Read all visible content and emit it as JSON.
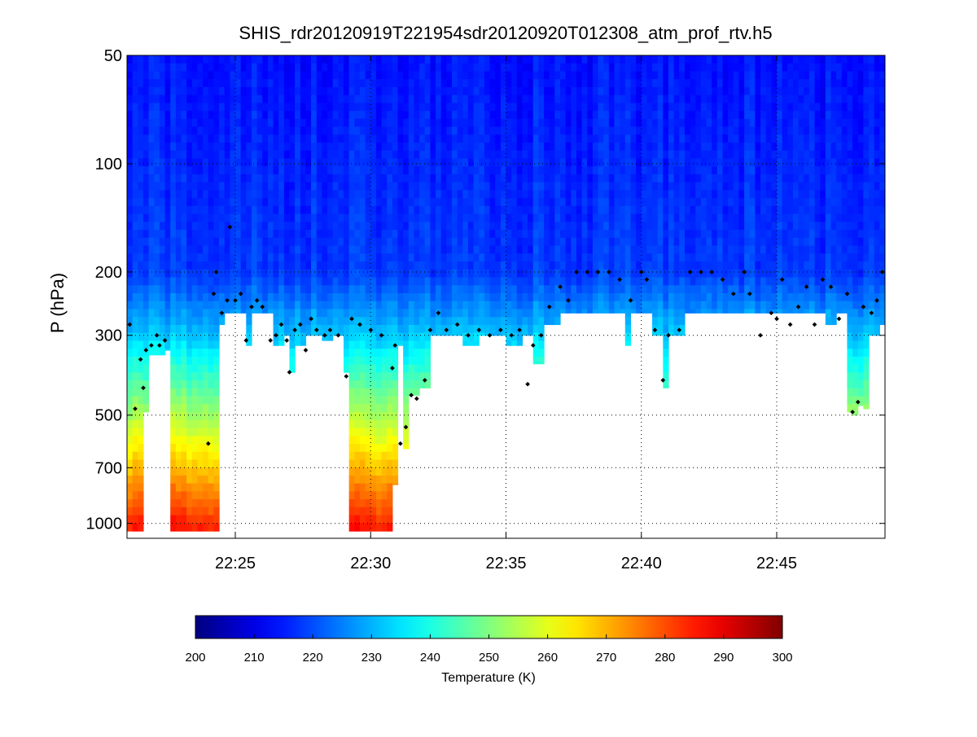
{
  "chart_data": {
    "type": "heatmap",
    "title": "SHIS_rdr20120919T221954sdr20120920T012308_atm_prof_rtv.h5",
    "xlabel": "",
    "ylabel": "P (hPa)",
    "x_range_minutes": [
      21.0,
      49.0
    ],
    "x_ticks": [
      {
        "value": 25,
        "label": "22:25"
      },
      {
        "value": 30,
        "label": "22:30"
      },
      {
        "value": 35,
        "label": "22:35"
      },
      {
        "value": 40,
        "label": "22:40"
      },
      {
        "value": 45,
        "label": "22:45"
      }
    ],
    "y_scale": "log",
    "y_range": [
      50,
      1100
    ],
    "y_ticks": [
      {
        "value": 50,
        "label": "50"
      },
      {
        "value": 100,
        "label": "100"
      },
      {
        "value": 200,
        "label": "200"
      },
      {
        "value": 300,
        "label": "300"
      },
      {
        "value": 500,
        "label": "500"
      },
      {
        "value": 700,
        "label": "700"
      },
      {
        "value": 1000,
        "label": "1000"
      }
    ],
    "grid": "dotted",
    "colormap": "jet",
    "colorbar": {
      "label": "Temperature (K)",
      "range": [
        200,
        300
      ],
      "ticks": [
        200,
        210,
        220,
        230,
        240,
        250,
        260,
        270,
        280,
        290,
        300
      ],
      "placement": "bottom"
    },
    "profile_bottom": [
      [
        21.0,
        1050
      ],
      [
        21.6,
        490
      ],
      [
        21.8,
        340
      ],
      [
        22.4,
        330
      ],
      [
        22.6,
        1050
      ],
      [
        24.2,
        1050
      ],
      [
        24.4,
        280
      ],
      [
        24.6,
        260
      ],
      [
        25.0,
        260
      ],
      [
        25.4,
        320
      ],
      [
        25.6,
        260
      ],
      [
        26.2,
        260
      ],
      [
        26.4,
        320
      ],
      [
        26.8,
        300
      ],
      [
        27.0,
        380
      ],
      [
        27.3,
        320
      ],
      [
        27.6,
        300
      ],
      [
        28.2,
        310
      ],
      [
        28.6,
        300
      ],
      [
        29.0,
        380
      ],
      [
        29.2,
        1050
      ],
      [
        30.6,
        1050
      ],
      [
        30.8,
        780
      ],
      [
        31.0,
        320
      ],
      [
        31.2,
        620
      ],
      [
        31.4,
        440
      ],
      [
        31.8,
        420
      ],
      [
        32.2,
        300
      ],
      [
        33.4,
        320
      ],
      [
        34.0,
        300
      ],
      [
        35.0,
        320
      ],
      [
        35.6,
        300
      ],
      [
        36.0,
        360
      ],
      [
        36.4,
        280
      ],
      [
        37.0,
        260
      ],
      [
        38.0,
        260
      ],
      [
        39.4,
        320
      ],
      [
        39.6,
        260
      ],
      [
        40.2,
        260
      ],
      [
        40.4,
        300
      ],
      [
        40.8,
        420
      ],
      [
        41.0,
        300
      ],
      [
        41.6,
        260
      ],
      [
        46.8,
        280
      ],
      [
        47.2,
        260
      ],
      [
        47.6,
        260
      ],
      [
        47.7,
        490
      ],
      [
        47.9,
        500
      ],
      [
        48.1,
        470
      ],
      [
        48.3,
        480
      ],
      [
        48.5,
        300
      ],
      [
        48.8,
        280
      ],
      [
        49.0,
        260
      ]
    ],
    "cloud_markers": [
      [
        21.1,
        280
      ],
      [
        21.3,
        480
      ],
      [
        21.5,
        350
      ],
      [
        21.6,
        420
      ],
      [
        21.7,
        330
      ],
      [
        21.9,
        320
      ],
      [
        22.1,
        300
      ],
      [
        22.2,
        320
      ],
      [
        22.4,
        310
      ],
      [
        24.0,
        600
      ],
      [
        24.2,
        230
      ],
      [
        24.3,
        200
      ],
      [
        24.5,
        260
      ],
      [
        24.7,
        240
      ],
      [
        24.8,
        150
      ],
      [
        25.0,
        240
      ],
      [
        25.2,
        230
      ],
      [
        25.4,
        310
      ],
      [
        25.6,
        250
      ],
      [
        25.8,
        240
      ],
      [
        26.0,
        250
      ],
      [
        26.3,
        310
      ],
      [
        26.5,
        300
      ],
      [
        26.7,
        280
      ],
      [
        26.9,
        310
      ],
      [
        27.0,
        380
      ],
      [
        27.2,
        290
      ],
      [
        27.4,
        280
      ],
      [
        27.6,
        330
      ],
      [
        27.8,
        270
      ],
      [
        28.0,
        290
      ],
      [
        28.3,
        300
      ],
      [
        28.5,
        290
      ],
      [
        28.8,
        300
      ],
      [
        29.1,
        390
      ],
      [
        29.3,
        270
      ],
      [
        29.6,
        280
      ],
      [
        30.0,
        290
      ],
      [
        30.4,
        300
      ],
      [
        30.8,
        370
      ],
      [
        30.9,
        320
      ],
      [
        31.1,
        600
      ],
      [
        31.3,
        540
      ],
      [
        31.5,
        440
      ],
      [
        31.7,
        450
      ],
      [
        32.0,
        400
      ],
      [
        32.2,
        290
      ],
      [
        32.5,
        260
      ],
      [
        32.8,
        290
      ],
      [
        33.2,
        280
      ],
      [
        33.6,
        300
      ],
      [
        34.0,
        290
      ],
      [
        34.4,
        300
      ],
      [
        34.8,
        290
      ],
      [
        35.2,
        300
      ],
      [
        35.5,
        290
      ],
      [
        35.8,
        410
      ],
      [
        36.0,
        320
      ],
      [
        36.3,
        300
      ],
      [
        36.6,
        250
      ],
      [
        37.0,
        220
      ],
      [
        37.3,
        240
      ],
      [
        37.6,
        200
      ],
      [
        38.0,
        200
      ],
      [
        38.4,
        200
      ],
      [
        38.8,
        200
      ],
      [
        39.2,
        210
      ],
      [
        39.6,
        240
      ],
      [
        40.0,
        200
      ],
      [
        40.2,
        210
      ],
      [
        40.5,
        290
      ],
      [
        40.8,
        400
      ],
      [
        41.0,
        300
      ],
      [
        41.4,
        290
      ],
      [
        41.8,
        200
      ],
      [
        42.2,
        200
      ],
      [
        42.6,
        200
      ],
      [
        43.0,
        210
      ],
      [
        43.4,
        230
      ],
      [
        43.8,
        200
      ],
      [
        44.0,
        230
      ],
      [
        44.4,
        300
      ],
      [
        44.8,
        260
      ],
      [
        45.0,
        270
      ],
      [
        45.2,
        210
      ],
      [
        45.5,
        280
      ],
      [
        45.8,
        250
      ],
      [
        46.1,
        220
      ],
      [
        46.4,
        280
      ],
      [
        46.7,
        210
      ],
      [
        47.0,
        220
      ],
      [
        47.3,
        270
      ],
      [
        47.6,
        230
      ],
      [
        47.8,
        490
      ],
      [
        48.0,
        460
      ],
      [
        48.2,
        250
      ],
      [
        48.5,
        260
      ],
      [
        48.7,
        240
      ],
      [
        48.9,
        200
      ]
    ]
  }
}
